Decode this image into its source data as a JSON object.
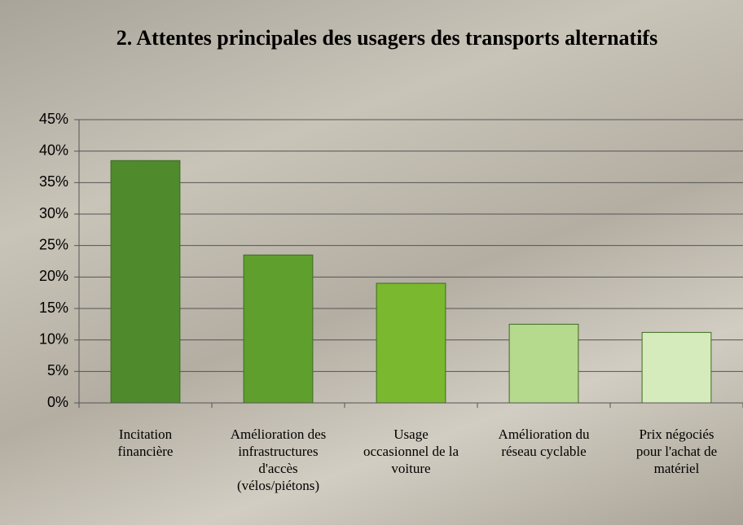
{
  "chart_data": {
    "type": "bar",
    "title": "2. Attentes principales des usagers des transports alternatifs",
    "categories": [
      "Incitation\nfinancière",
      "Amélioration des\ninfrastructures\nd'accès\n(vélos/piétons)",
      "Usage\noccasionnel de la\nvoiture",
      "Amélioration du\nréseau cyclable",
      "Prix négociés\npour l'achat de\nmatériel"
    ],
    "values": [
      38.5,
      23.5,
      19,
      12.5,
      11.2
    ],
    "colors": [
      "#4f8a2c",
      "#5f9f2d",
      "#7ab82f",
      "#b5d98d",
      "#d6ebbb"
    ],
    "ylim": [
      0,
      45
    ],
    "yticks": [
      {
        "value": 0,
        "label": "0%"
      },
      {
        "value": 5,
        "label": "5%"
      },
      {
        "value": 10,
        "label": "10%"
      },
      {
        "value": 15,
        "label": "15%"
      },
      {
        "value": 20,
        "label": "20%"
      },
      {
        "value": 25,
        "label": "25%"
      },
      {
        "value": 30,
        "label": "30%"
      },
      {
        "value": 35,
        "label": "35%"
      },
      {
        "value": 40,
        "label": "40%"
      },
      {
        "value": 45,
        "label": "45%"
      }
    ],
    "grid": true
  }
}
